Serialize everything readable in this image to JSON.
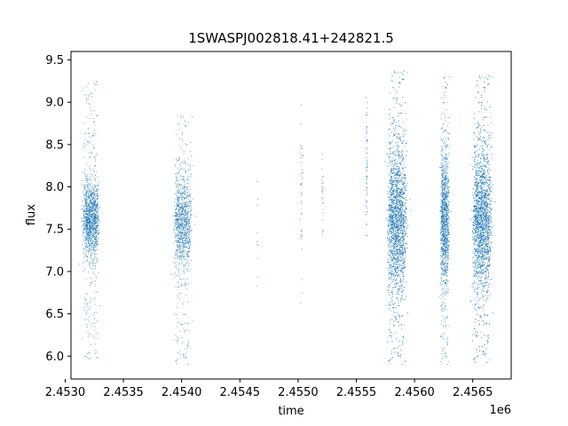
{
  "chart_data": {
    "type": "scatter",
    "title": "1SWASPJ002818.41+242821.5",
    "xlabel": "time",
    "ylabel": "flux",
    "x_offset_label": "1e6",
    "x_unit_multiplier": 1000000,
    "xlim": [
      2.45305,
      2.45683
    ],
    "ylim": [
      5.73,
      9.6
    ],
    "xticks": [
      2.453,
      2.4535,
      2.454,
      2.4545,
      2.455,
      2.4555,
      2.456,
      2.4565
    ],
    "xtick_labels": [
      "2.4530",
      "2.4535",
      "2.4540",
      "2.4545",
      "2.4550",
      "2.4555",
      "2.4560",
      "2.4565"
    ],
    "yticks": [
      6.0,
      6.5,
      7.0,
      7.5,
      8.0,
      8.5,
      9.0,
      9.5
    ],
    "ytick_labels": [
      "6.0",
      "6.5",
      "7.0",
      "7.5",
      "8.0",
      "8.5",
      "9.0",
      "9.5"
    ],
    "grid": false,
    "marker_color": "#1f77b4",
    "clusters": [
      {
        "x_center": 2.45322,
        "x_width": 0.00011,
        "y_center": 7.62,
        "y_spread": 0.22,
        "y_min": 5.95,
        "y_max": 9.25,
        "n_points": 1400
      },
      {
        "x_center": 2.45401,
        "x_width": 0.00012,
        "y_center": 7.58,
        "y_spread": 0.26,
        "y_min": 5.9,
        "y_max": 8.85,
        "n_points": 1100
      },
      {
        "x_center": 2.45465,
        "x_width": 1e-05,
        "y_center": 7.2,
        "y_spread": 0.6,
        "y_min": 6.0,
        "y_max": 8.1,
        "n_points": 10
      },
      {
        "x_center": 2.45503,
        "x_width": 2e-05,
        "y_center": 7.9,
        "y_spread": 0.45,
        "y_min": 6.6,
        "y_max": 9.05,
        "n_points": 45
      },
      {
        "x_center": 2.45521,
        "x_width": 1e-05,
        "y_center": 7.9,
        "y_spread": 0.3,
        "y_min": 7.4,
        "y_max": 8.45,
        "n_points": 25
      },
      {
        "x_center": 2.45559,
        "x_width": 1e-05,
        "y_center": 8.2,
        "y_spread": 0.4,
        "y_min": 7.3,
        "y_max": 9.1,
        "n_points": 70
      },
      {
        "x_center": 2.45585,
        "x_width": 0.00013,
        "y_center": 7.6,
        "y_spread": 0.42,
        "y_min": 5.9,
        "y_max": 9.38,
        "n_points": 2600
      },
      {
        "x_center": 2.45626,
        "x_width": 6e-05,
        "y_center": 7.6,
        "y_spread": 0.38,
        "y_min": 5.9,
        "y_max": 9.32,
        "n_points": 1300
      },
      {
        "x_center": 2.45658,
        "x_width": 0.00013,
        "y_center": 7.6,
        "y_spread": 0.4,
        "y_min": 5.92,
        "y_max": 9.32,
        "n_points": 2600
      }
    ]
  }
}
